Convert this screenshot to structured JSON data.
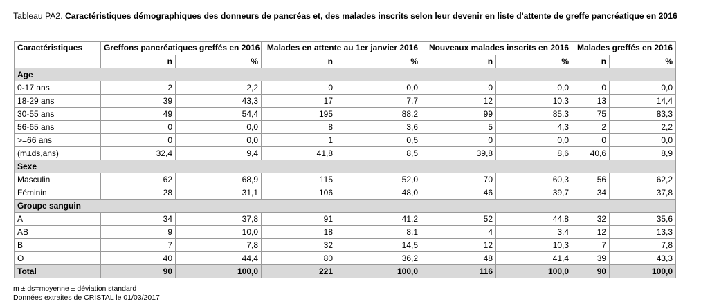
{
  "caption": {
    "prefix": "Tableau PA2.",
    "text": "Caractéristiques démographiques des donneurs de pancréas et, des malades inscrits selon leur devenir en liste d'attente de greffe pancréatique en 2016"
  },
  "table": {
    "columns": [
      "Caractéristiques",
      "Greffons pancréatiques greffés en 2016",
      "Malades en attente au 1er janvier 2016",
      "Nouveaux malades inscrits en 2016",
      "Malades greffés en 2016"
    ],
    "subheaders": [
      "n",
      "%"
    ],
    "sections": [
      {
        "title": "Age",
        "rows": [
          {
            "label": "0-17 ans",
            "values": [
              "2",
              "2,2",
              "0",
              "0,0",
              "0",
              "0,0",
              "0",
              "0,0"
            ]
          },
          {
            "label": "18-29 ans",
            "values": [
              "39",
              "43,3",
              "17",
              "7,7",
              "12",
              "10,3",
              "13",
              "14,4"
            ]
          },
          {
            "label": "30-55 ans",
            "values": [
              "49",
              "54,4",
              "195",
              "88,2",
              "99",
              "85,3",
              "75",
              "83,3"
            ]
          },
          {
            "label": "56-65 ans",
            "values": [
              "0",
              "0,0",
              "8",
              "3,6",
              "5",
              "4,3",
              "2",
              "2,2"
            ]
          },
          {
            "label": ">=66 ans",
            "values": [
              "0",
              "0,0",
              "1",
              "0,5",
              "0",
              "0,0",
              "0",
              "0,0"
            ]
          },
          {
            "label": "(m±ds,ans)",
            "values": [
              "32,4",
              "9,4",
              "41,8",
              "8,5",
              "39,8",
              "8,6",
              "40,6",
              "8,9"
            ]
          }
        ]
      },
      {
        "title": "Sexe",
        "rows": [
          {
            "label": "Masculin",
            "values": [
              "62",
              "68,9",
              "115",
              "52,0",
              "70",
              "60,3",
              "56",
              "62,2"
            ]
          },
          {
            "label": "Féminin",
            "values": [
              "28",
              "31,1",
              "106",
              "48,0",
              "46",
              "39,7",
              "34",
              "37,8"
            ]
          }
        ]
      },
      {
        "title": "Groupe sanguin",
        "rows": [
          {
            "label": "A",
            "values": [
              "34",
              "37,8",
              "91",
              "41,2",
              "52",
              "44,8",
              "32",
              "35,6"
            ]
          },
          {
            "label": "AB",
            "values": [
              "9",
              "10,0",
              "18",
              "8,1",
              "4",
              "3,4",
              "12",
              "13,3"
            ]
          },
          {
            "label": "B",
            "values": [
              "7",
              "7,8",
              "32",
              "14,5",
              "12",
              "10,3",
              "7",
              "7,8"
            ]
          },
          {
            "label": "O",
            "values": [
              "40",
              "44,4",
              "80",
              "36,2",
              "48",
              "41,4",
              "39",
              "43,3"
            ]
          }
        ]
      }
    ],
    "total": {
      "label": "Total",
      "values": [
        "90",
        "100,0",
        "221",
        "100,0",
        "116",
        "100,0",
        "90",
        "100,0"
      ]
    }
  },
  "footnotes": [
    "m ± ds=moyenne ± déviation standard",
    "Données extraites de CRISTAL le 01/03/2017"
  ]
}
